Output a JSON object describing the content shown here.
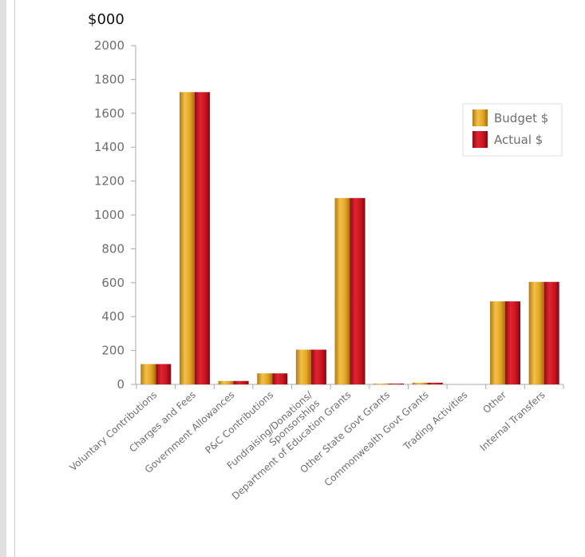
{
  "chart_data": {
    "type": "bar",
    "unit_label": "$000",
    "categories": [
      [
        "Voluntary Contributions"
      ],
      [
        "Charges and Fees"
      ],
      [
        "Government Allowances"
      ],
      [
        "P&C Contributions"
      ],
      [
        "Fundraising/Donations/",
        "Sponsorships"
      ],
      [
        "Department of Education Grants"
      ],
      [
        "Other State Govt Grants"
      ],
      [
        "Commonwealth Govt Grants"
      ],
      [
        "Trading Activities"
      ],
      [
        "Other"
      ],
      [
        "Internal Transfers"
      ]
    ],
    "series": [
      {
        "name": "Budget $",
        "color": "#e0a020",
        "values": [
          120,
          1725,
          20,
          65,
          205,
          1100,
          5,
          10,
          0,
          490,
          605
        ]
      },
      {
        "name": "Actual $",
        "color": "#cc1420",
        "values": [
          120,
          1725,
          20,
          65,
          205,
          1100,
          5,
          10,
          0,
          490,
          605
        ]
      }
    ],
    "ylim": [
      0,
      2000
    ],
    "yticks": [
      "0",
      "200",
      "400",
      "600",
      "800",
      "1000",
      "1200",
      "1400",
      "1600",
      "1800",
      "2000"
    ],
    "grid": false,
    "legend_position": "top-right"
  }
}
